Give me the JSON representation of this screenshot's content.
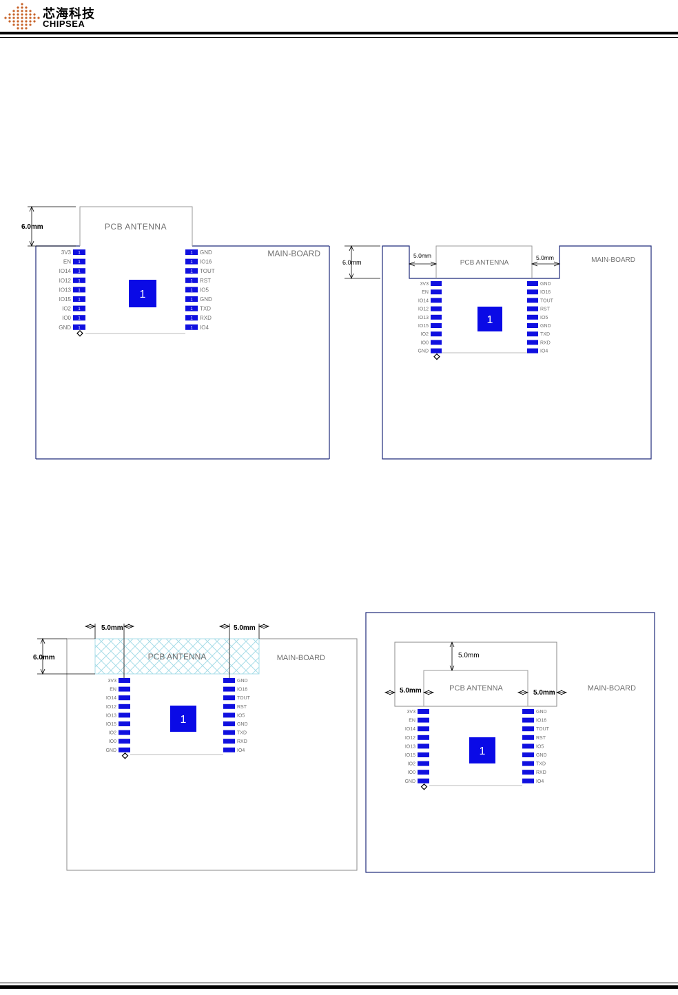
{
  "header": {
    "logo_cn": "芯海科技",
    "logo_en": "CHIPSEA"
  },
  "labels": {
    "pcb_antenna": "PCB ANTENNA",
    "main_board": "MAIN-BOARD",
    "chip": "1",
    "pad_mark": "1"
  },
  "dimensions": {
    "d6": "6.0mm",
    "d5": "5.0mm",
    "d5_small": "5.0mm"
  },
  "pins": {
    "left": [
      "3V3",
      "EN",
      "IO14",
      "IO12",
      "IO13",
      "IO15",
      "IO2",
      "IO0",
      "GND"
    ],
    "right": [
      "GND",
      "IO16",
      "TOUT",
      "RST",
      "IO5",
      "GND",
      "TXD",
      "RXD",
      "IO4"
    ]
  },
  "colors": {
    "board_line": "#1f2a7a",
    "pad_blue": "#1010e0",
    "chip_blue": "#0a0ae6",
    "antenna_line": "#9a9a9a",
    "hatch": "#a8dde8",
    "text_gray": "#707070"
  }
}
